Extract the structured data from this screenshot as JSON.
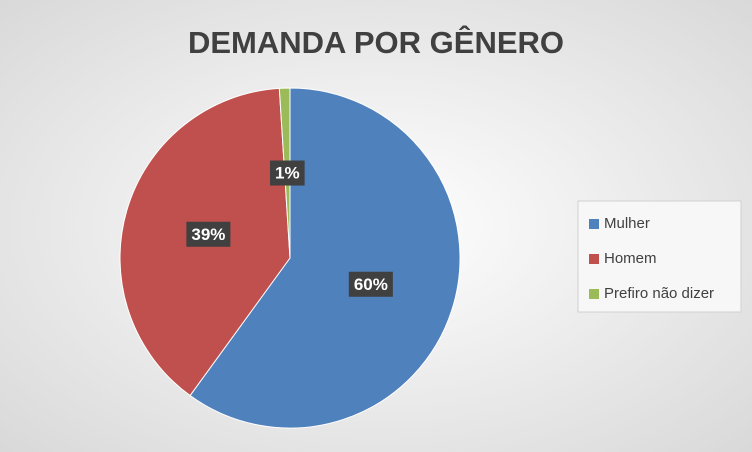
{
  "chart_data": {
    "type": "pie",
    "title": "DEMANDA POR GÊNERO",
    "categories": [
      "Mulher",
      "Homem",
      "Prefiro não dizer"
    ],
    "values": [
      60,
      39,
      1
    ],
    "value_labels": [
      "60%",
      "39%",
      "1%"
    ],
    "colors": [
      "#4f81bd",
      "#c0504d",
      "#9bbb59"
    ],
    "legend": "right"
  }
}
